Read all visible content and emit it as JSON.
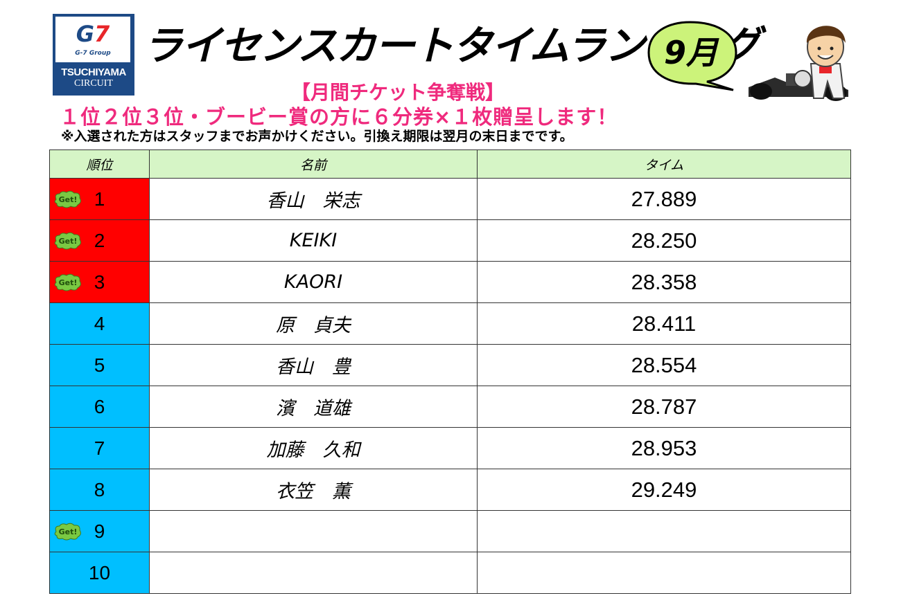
{
  "logo": {
    "brand": "G7",
    "group": "G-7 Group",
    "line1": "TSUCHIYAMA",
    "line2": "CIRCUIT"
  },
  "title": "ライセンスカートタイムランキング",
  "month_badge": "9月",
  "subtitle": "【月間チケット争奪戦】",
  "prize": "１位２位３位・ブービー賞の方に６分券×１枚贈呈します！",
  "note": "※入選された方はスタッフまでお声かけください。引換え期限は翌月の末日までです。",
  "table": {
    "headers": {
      "rank": "順位",
      "name": "名前",
      "time": "タイム"
    },
    "badge_label": "Get!",
    "rows": [
      {
        "rank": "1",
        "name": "香山　栄志",
        "time": "27.889",
        "badge": true,
        "highlight": "top"
      },
      {
        "rank": "2",
        "name": "KEIKI",
        "time": "28.250",
        "badge": true,
        "highlight": "top"
      },
      {
        "rank": "3",
        "name": "KAORI",
        "time": "28.358",
        "badge": true,
        "highlight": "top"
      },
      {
        "rank": "4",
        "name": "原　貞夫",
        "time": "28.411",
        "badge": false,
        "highlight": "normal"
      },
      {
        "rank": "5",
        "name": "香山　豊",
        "time": "28.554",
        "badge": false,
        "highlight": "normal"
      },
      {
        "rank": "6",
        "name": "濱　道雄",
        "time": "28.787",
        "badge": false,
        "highlight": "normal"
      },
      {
        "rank": "7",
        "name": "加藤　久和",
        "time": "28.953",
        "badge": false,
        "highlight": "normal"
      },
      {
        "rank": "8",
        "name": "衣笠　薫",
        "time": "29.249",
        "badge": false,
        "highlight": "normal"
      },
      {
        "rank": "9",
        "name": "",
        "time": "",
        "badge": true,
        "highlight": "normal"
      },
      {
        "rank": "10",
        "name": "",
        "time": "",
        "badge": false,
        "highlight": "normal"
      }
    ]
  },
  "colors": {
    "top": "#ff0000",
    "normal": "#00bfff",
    "header": "#d6f5c6",
    "accent": "#ef2a7d",
    "bubble": "#ccf37a",
    "badge": "#7ac943"
  }
}
